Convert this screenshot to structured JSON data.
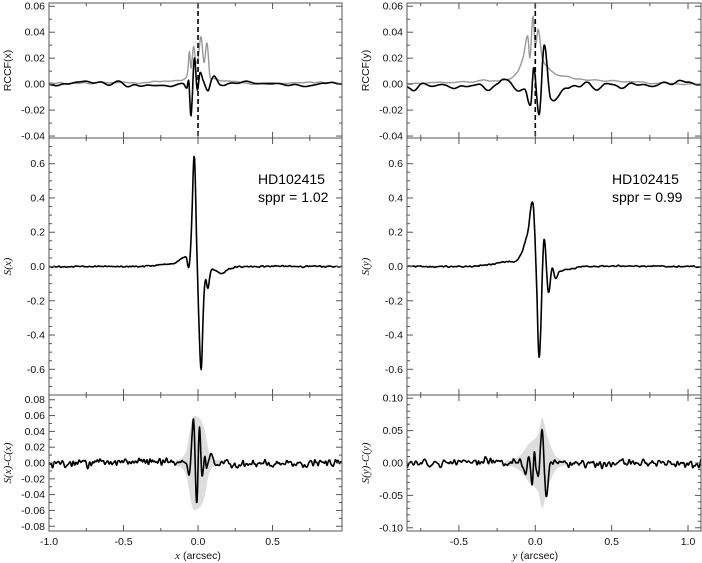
{
  "colors": {
    "primary": "#000000",
    "secondary": "#999999",
    "band": "#dddddd",
    "axis": "#555555"
  },
  "annotations": {
    "left": {
      "star": "HD102415",
      "sppr": "sppr = 1.02"
    },
    "right": {
      "star": "HD102415",
      "sppr": "sppr = 0.99"
    }
  },
  "chart_data": [
    {
      "id": "rccf-x",
      "type": "line",
      "column": "left",
      "row": "top",
      "ylabel": "RCCF(x)",
      "ylabel_style": "sans",
      "xlim": [
        -1.0,
        0.966
      ],
      "ylim": [
        -0.0415,
        0.0625
      ],
      "yticks": [
        -0.04,
        -0.02,
        0.0,
        0.02,
        0.04,
        0.06
      ],
      "yminor": 0.01,
      "ydec": 2,
      "xticks": [
        -1.0,
        -0.5,
        0.0,
        0.5
      ],
      "xminor": 0.25,
      "show_xlabels": false,
      "vline": 0.0,
      "series": [
        {
          "name": "gray",
          "color": "#999999",
          "noise": 0.0004,
          "smooth": 6,
          "x": [
            -1.0,
            -0.4,
            -0.15,
            -0.09,
            -0.07,
            -0.058,
            -0.047,
            -0.03,
            -0.015,
            0.0,
            0.02,
            0.04,
            0.06,
            0.08,
            0.1,
            0.15,
            0.3,
            0.6,
            0.966
          ],
          "y": [
            0.001,
            0.001,
            0.003,
            0.005,
            0.009,
            0.025,
            0.012,
            0.029,
            0.017,
            0.02,
            0.037,
            0.017,
            0.032,
            0.006,
            0.004,
            0.003,
            0.001,
            0.001,
            0.001
          ]
        },
        {
          "name": "black",
          "color": "#000000",
          "noise": 0.0012,
          "smooth": 8,
          "x": [
            -1.0,
            -0.2,
            -0.1,
            -0.075,
            -0.062,
            -0.047,
            -0.025,
            -0.005,
            0.013,
            0.035,
            0.067,
            0.09,
            0.11,
            0.15,
            0.3,
            0.966
          ],
          "y": [
            0.0,
            0.0,
            0.0,
            -0.003,
            0.003,
            -0.023,
            0.022,
            -0.003,
            0.009,
            0.001,
            -0.008,
            0.001,
            0.005,
            0.0,
            0.0,
            0.0
          ]
        }
      ]
    },
    {
      "id": "s-x",
      "type": "line",
      "column": "left",
      "row": "middle",
      "ylabel": "S(x)",
      "ylabel_style": "serif",
      "xlim": [
        -1.0,
        0.966
      ],
      "ylim": [
        -0.75,
        0.75
      ],
      "yticks": [
        -0.6,
        -0.4,
        -0.2,
        0.0,
        0.2,
        0.4,
        0.6
      ],
      "yminor": 0.05,
      "ydec": 1,
      "xticks": [
        -1.0,
        -0.5,
        0.0,
        0.5
      ],
      "xminor": 0.25,
      "show_xlabels": false,
      "series": [
        {
          "name": "S(x)",
          "color": "#000000",
          "noise": 0.002,
          "smooth": 1,
          "x": [
            -1.0,
            -0.4,
            -0.25,
            -0.15,
            -0.12,
            -0.08,
            -0.06,
            -0.045,
            -0.025,
            -0.005,
            0.02,
            0.038,
            0.05,
            0.067,
            0.085,
            0.11,
            0.155,
            0.22,
            0.35,
            0.966
          ],
          "y": [
            0.0,
            0.0,
            0.01,
            0.02,
            0.04,
            0.055,
            0.0,
            0.2,
            0.64,
            0.0,
            -0.6,
            -0.2,
            -0.08,
            -0.13,
            -0.03,
            -0.02,
            -0.04,
            -0.01,
            0.0,
            0.0
          ]
        }
      ]
    },
    {
      "id": "sx-minus-cx",
      "type": "line",
      "column": "left",
      "row": "bottom",
      "ylabel": "S(x)-C(x)",
      "ylabel_style": "serif",
      "xlim": [
        -1.0,
        0.966
      ],
      "ylim": [
        -0.086,
        0.086
      ],
      "yticks": [
        -0.08,
        -0.06,
        -0.04,
        -0.02,
        0.0,
        0.02,
        0.04,
        0.06,
        0.08
      ],
      "yminor": 0.01,
      "ydec": 2,
      "xticks": [
        -1.0,
        -0.5,
        0.0,
        0.5
      ],
      "xminor": 0.25,
      "show_xlabels": true,
      "xlabel": "x (arcsec)",
      "band": {
        "x": [
          -0.15,
          -0.08,
          -0.04,
          0.0,
          0.04,
          0.08,
          0.15
        ],
        "half": [
          0.004,
          0.015,
          0.055,
          0.058,
          0.045,
          0.01,
          0.004
        ]
      },
      "series": [
        {
          "name": "residual",
          "color": "#000000",
          "noise": 0.0022,
          "smooth": 1,
          "x": [
            -1.0,
            -0.08,
            -0.056,
            -0.03,
            -0.009,
            0.009,
            0.027,
            0.045,
            0.057,
            0.087,
            0.11,
            0.966
          ],
          "y": [
            0.0,
            0.0,
            -0.013,
            0.051,
            -0.05,
            0.044,
            -0.017,
            0.008,
            -0.007,
            0.014,
            0.0,
            0.0
          ]
        }
      ]
    },
    {
      "id": "rccf-y",
      "type": "line",
      "column": "right",
      "row": "top",
      "ylabel": "RCCF(y)",
      "ylabel_style": "sans",
      "xlim": [
        -0.84,
        1.085
      ],
      "ylim": [
        -0.0415,
        0.0625
      ],
      "yticks": [
        -0.04,
        -0.02,
        0.0,
        0.02,
        0.04,
        0.06
      ],
      "yminor": 0.01,
      "ydec": 2,
      "xticks": [
        -0.5,
        0.0,
        0.5,
        1.0
      ],
      "xminor": 0.25,
      "show_xlabels": false,
      "vline": 0.0,
      "series": [
        {
          "name": "gray",
          "color": "#999999",
          "noise": 0.0004,
          "smooth": 6,
          "x": [
            -0.84,
            -0.4,
            -0.2,
            -0.12,
            -0.08,
            -0.05,
            -0.035,
            -0.015,
            0.0,
            0.02,
            0.045,
            0.08,
            0.15,
            0.3,
            0.6,
            1.085
          ],
          "y": [
            0.001,
            0.002,
            0.003,
            0.008,
            0.02,
            0.037,
            0.02,
            0.052,
            0.03,
            0.042,
            0.02,
            0.013,
            0.007,
            0.004,
            0.002,
            0.0
          ]
        },
        {
          "name": "black",
          "color": "#000000",
          "noise": 0.0018,
          "smooth": 8,
          "x": [
            -0.84,
            -0.25,
            -0.21,
            -0.15,
            -0.07,
            -0.03,
            -0.01,
            0.026,
            0.058,
            0.1,
            0.2,
            0.4,
            1.085
          ],
          "y": [
            0.0,
            0.0,
            0.003,
            -0.001,
            -0.002,
            -0.017,
            0.011,
            -0.026,
            0.028,
            -0.012,
            -0.002,
            -0.001,
            0.0
          ]
        }
      ]
    },
    {
      "id": "s-y",
      "type": "line",
      "column": "right",
      "row": "middle",
      "ylabel": "S(y)",
      "ylabel_style": "serif",
      "xlim": [
        -0.84,
        1.085
      ],
      "ylim": [
        -0.75,
        0.75
      ],
      "yticks": [
        -0.6,
        -0.4,
        -0.2,
        0.0,
        0.2,
        0.4,
        0.6
      ],
      "yminor": 0.05,
      "ydec": 1,
      "xticks": [
        -0.5,
        0.0,
        0.5,
        1.0
      ],
      "xminor": 0.25,
      "show_xlabels": false,
      "series": [
        {
          "name": "S(y)",
          "color": "#000000",
          "noise": 0.002,
          "smooth": 1,
          "x": [
            -0.84,
            -0.45,
            -0.3,
            -0.18,
            -0.13,
            -0.09,
            -0.05,
            -0.015,
            0.005,
            0.026,
            0.056,
            0.085,
            0.11,
            0.13,
            0.16,
            0.2,
            0.35,
            1.085
          ],
          "y": [
            0.0,
            0.0,
            0.01,
            0.03,
            0.03,
            0.08,
            0.2,
            0.37,
            0.0,
            -0.53,
            0.15,
            -0.15,
            -0.01,
            -0.07,
            -0.03,
            -0.02,
            0.0,
            0.0
          ]
        }
      ]
    },
    {
      "id": "sy-minus-cy",
      "type": "line",
      "column": "right",
      "row": "bottom",
      "ylabel": "S(y)-C(y)",
      "ylabel_style": "serif",
      "xlim": [
        -0.84,
        1.085
      ],
      "ylim": [
        -0.105,
        0.105
      ],
      "yticks": [
        -0.1,
        -0.05,
        0.0,
        0.05,
        0.1
      ],
      "yminor": 0.01,
      "ydec": 2,
      "xticks": [
        -0.5,
        0.0,
        0.5,
        1.0
      ],
      "xminor": 0.25,
      "show_xlabels": true,
      "xlabel": "y (arcsec)",
      "band": {
        "x": [
          -0.2,
          -0.1,
          -0.04,
          0.02,
          0.045,
          0.08,
          0.13,
          0.2
        ],
        "half": [
          0.004,
          0.012,
          0.03,
          0.045,
          0.07,
          0.04,
          0.012,
          0.004
        ]
      },
      "series": [
        {
          "name": "residual",
          "color": "#000000",
          "noise": 0.0028,
          "smooth": 1,
          "x": [
            -0.84,
            -0.1,
            -0.06,
            -0.04,
            -0.02,
            -0.005,
            0.005,
            0.02,
            0.045,
            0.07,
            0.095,
            0.12,
            0.15,
            1.085
          ],
          "y": [
            0.0,
            0.0,
            -0.015,
            0.01,
            -0.03,
            0.015,
            -0.01,
            -0.02,
            0.05,
            -0.052,
            -0.005,
            0.005,
            0.0,
            0.0
          ]
        }
      ]
    }
  ]
}
